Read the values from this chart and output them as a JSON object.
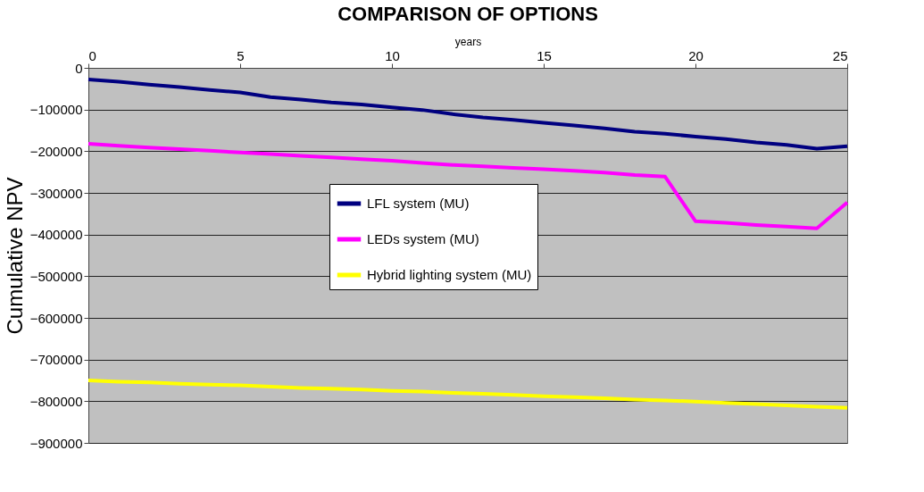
{
  "chart_data": {
    "type": "line",
    "title": "COMPARISON OF OPTIONS",
    "xlabel": "years",
    "ylabel": "Cumulative NPV",
    "x": [
      0,
      1,
      2,
      3,
      4,
      5,
      6,
      7,
      8,
      9,
      10,
      11,
      12,
      13,
      14,
      15,
      16,
      17,
      18,
      19,
      20,
      21,
      22,
      23,
      24,
      25
    ],
    "series": [
      {
        "name": "LFL system (MU)",
        "color": "#000080",
        "values": [
          -28000,
          -33000,
          -40000,
          -46000,
          -53000,
          -59000,
          -70000,
          -76000,
          -83000,
          -88000,
          -95000,
          -101000,
          -111000,
          -119000,
          -125000,
          -132000,
          -138000,
          -145000,
          -153000,
          -158000,
          -165000,
          -171000,
          -179000,
          -185000,
          -194000,
          -188000
        ]
      },
      {
        "name": "LEDs  system (MU)",
        "color": "#ff00ff",
        "values": [
          -182000,
          -187000,
          -191000,
          -195000,
          -199000,
          -203000,
          -207000,
          -211000,
          -215000,
          -219000,
          -223000,
          -228000,
          -233000,
          -236000,
          -240000,
          -243000,
          -247000,
          -251000,
          -257000,
          -261000,
          -368000,
          -372000,
          -377000,
          -381000,
          -385000,
          -323000
        ]
      },
      {
        "name": "Hybrid lighting system (MU)",
        "color": "#ffff00",
        "values": [
          -750000,
          -753000,
          -755000,
          -758000,
          -760000,
          -762000,
          -765000,
          -768000,
          -770000,
          -772000,
          -775000,
          -777000,
          -780000,
          -782000,
          -785000,
          -788000,
          -790000,
          -793000,
          -796000,
          -798000,
          -801000,
          -804000,
          -807000,
          -810000,
          -813000,
          -816000
        ]
      }
    ],
    "xlim": [
      0,
      25
    ],
    "xticks": [
      0,
      5,
      10,
      15,
      20,
      25
    ],
    "ylim": [
      -900000,
      0
    ],
    "yticks": [
      0,
      -100000,
      -200000,
      -300000,
      -400000,
      -500000,
      -600000,
      -700000,
      -800000,
      -900000
    ],
    "grid": "y",
    "legend": "center",
    "marker": "none",
    "line_style": "solid"
  }
}
